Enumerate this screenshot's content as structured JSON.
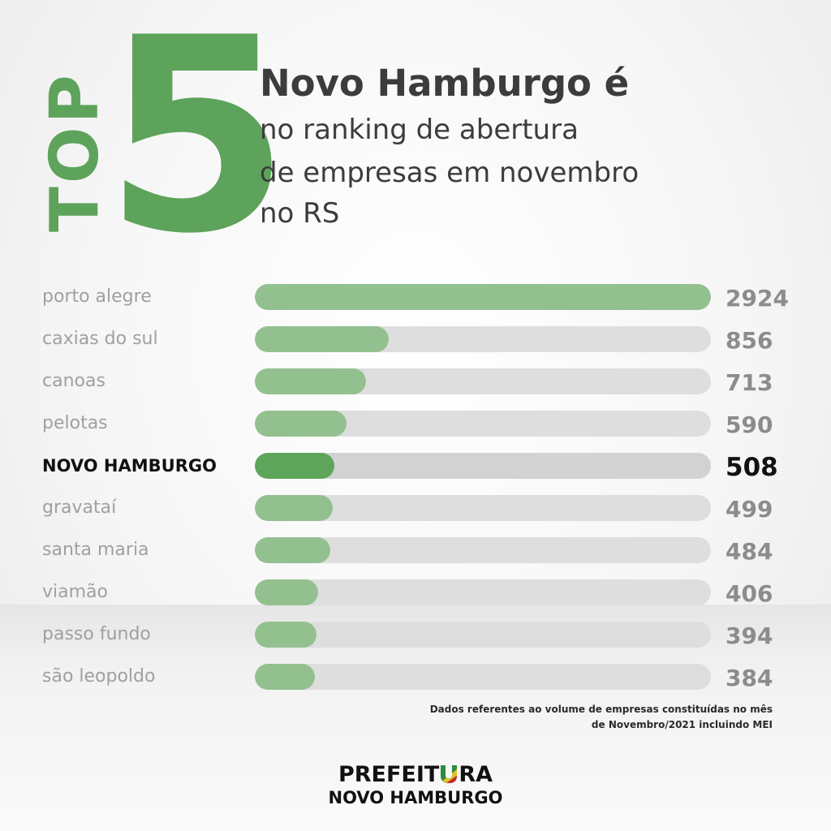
{
  "header": {
    "top_word": "TOP",
    "rank_number": "5",
    "headline": "Novo Hamburgo é",
    "subline_1": "no ranking de abertura",
    "subline_2": "de empresas em novembro",
    "subline_3": "no RS",
    "accent_color": "#5da35b"
  },
  "chart_data": {
    "type": "bar",
    "orientation": "horizontal",
    "categories": [
      "porto alegre",
      "caxias do sul",
      "canoas",
      "pelotas",
      "NOVO HAMBURGO",
      "gravataí",
      "santa maria",
      "viamão",
      "passo fundo",
      "são leopoldo"
    ],
    "values": [
      2924,
      856,
      713,
      590,
      508,
      499,
      484,
      406,
      394,
      384
    ],
    "value_labels": [
      "2924",
      "856",
      "713",
      "590",
      "508",
      "499",
      "484",
      "406",
      "394",
      "384"
    ],
    "highlight_index": 4,
    "title": "",
    "xlabel": "",
    "ylabel": "",
    "xlim": [
      0,
      2924
    ],
    "grid": false,
    "bar_color": "#93c08f",
    "highlight_color": "#5ea55c",
    "track_color": "#dedede"
  },
  "footnote": {
    "line_1": "Dados referentes ao volume de empresas constituídas no mês",
    "line_2": "de Novembro/2021 incluindo MEI"
  },
  "logo": {
    "line_1_start": "PREFEIT",
    "line_1_end": "RA",
    "line_2": "NOVO HAMBURGO",
    "flag_colors": [
      "#2e8b3e",
      "#e3c12b",
      "#c8232c"
    ]
  }
}
